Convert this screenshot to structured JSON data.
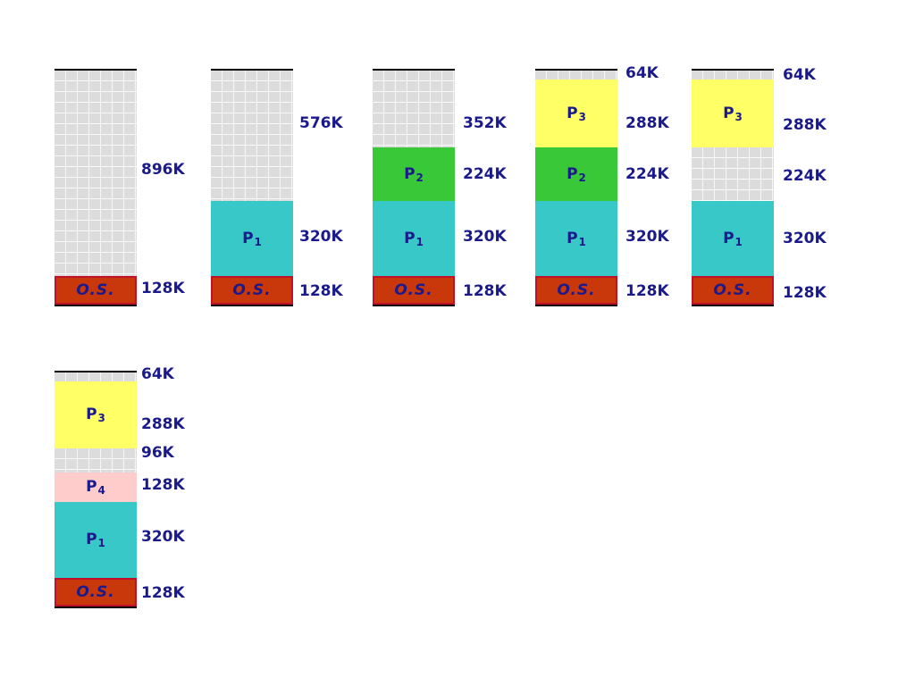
{
  "colors": {
    "os": "#c8380a",
    "free": "#dcdcdc",
    "p1": "#38c8c8",
    "p2": "#38c838",
    "p3": "#ffff66",
    "p4": "#ffcccc",
    "text": "#1a1a8c"
  },
  "os_label": "O.S.",
  "process_names": {
    "p1": {
      "base": "P",
      "sub": "1"
    },
    "p2": {
      "base": "P",
      "sub": "2"
    },
    "p3": {
      "base": "P",
      "sub": "3"
    },
    "p4": {
      "base": "P",
      "sub": "4"
    }
  },
  "sizes": {
    "s64": "64K",
    "s96": "96K",
    "s128": "128K",
    "s224": "224K",
    "s288": "288K",
    "s320": "320K",
    "s352": "352K",
    "s576": "576K",
    "s896": "896K"
  }
}
